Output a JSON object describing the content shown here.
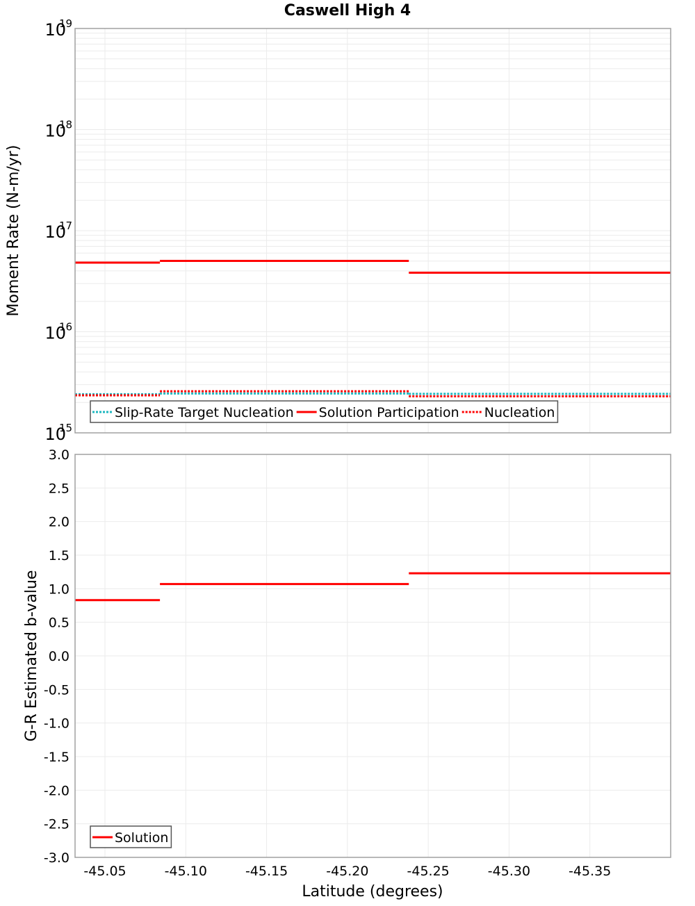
{
  "chart_data": [
    {
      "type": "line",
      "title": "Caswell High 4",
      "xlabel": "Latitude (degrees)",
      "ylabel": "Moment Rate (N-m/yr)",
      "yscale": "log",
      "ylim": [
        1000000000000000.0,
        1e+19
      ],
      "xlim": [
        -45.0315,
        -45.4
      ],
      "x_inverted": true,
      "y_tick_labels": [
        {
          "base": "10",
          "exp": "19",
          "value": 1e+19
        },
        {
          "base": "10",
          "exp": "18",
          "value": 1e+18
        },
        {
          "base": "10",
          "exp": "17",
          "value": 1e+17
        },
        {
          "base": "10",
          "exp": "16",
          "value": 1e+16
        },
        {
          "base": "10",
          "exp": "15",
          "value": 1000000000000000.0
        }
      ],
      "grid": true,
      "legend_position": "lower-left",
      "series": [
        {
          "name": "Slip-Rate Target Nucleation",
          "color": "#1fb8c0",
          "style": "dotted",
          "segments": [
            {
              "x0": -45.0315,
              "x1": -45.084,
              "value": 2410000000000000.0
            },
            {
              "x0": -45.084,
              "x1": -45.238,
              "value": 2450000000000000.0
            },
            {
              "x0": -45.238,
              "x1": -45.4,
              "value": 2430000000000000.0
            }
          ]
        },
        {
          "name": "Solution Participation",
          "color": "#ff0000",
          "style": "solid",
          "segments": [
            {
              "x0": -45.0315,
              "x1": -45.084,
              "value": 4.83e+16
            },
            {
              "x0": -45.084,
              "x1": -45.238,
              "value": 5.02e+16
            },
            {
              "x0": -45.238,
              "x1": -45.4,
              "value": 3.84e+16
            }
          ]
        },
        {
          "name": "Nucleation",
          "color": "#ff0000",
          "style": "dotted",
          "segments": [
            {
              "x0": -45.0315,
              "x1": -45.084,
              "value": 2350000000000000.0
            },
            {
              "x0": -45.084,
              "x1": -45.238,
              "value": 2580000000000000.0
            },
            {
              "x0": -45.238,
              "x1": -45.4,
              "value": 2300000000000000.0
            }
          ]
        }
      ]
    },
    {
      "type": "line",
      "title": "",
      "xlabel": "Latitude (degrees)",
      "ylabel": "G-R Estimated b-value",
      "ylim": [
        -3.0,
        3.0
      ],
      "xlim": [
        -45.0315,
        -45.4
      ],
      "x_inverted": true,
      "y_ticks": [
        "3.0",
        "2.5",
        "2.0",
        "1.5",
        "1.0",
        "0.5",
        "0.0",
        "-0.5",
        "-1.0",
        "-1.5",
        "-2.0",
        "-2.5",
        "-3.0"
      ],
      "x_ticks": [
        "-45.05",
        "-45.10",
        "-45.15",
        "-45.20",
        "-45.25",
        "-45.30",
        "-45.35"
      ],
      "x_tick_values": [
        -45.05,
        -45.1,
        -45.15,
        -45.2,
        -45.25,
        -45.3,
        -45.35
      ],
      "grid": true,
      "legend_position": "lower-left",
      "series": [
        {
          "name": "Solution",
          "color": "#ff0000",
          "style": "solid",
          "segments": [
            {
              "x0": -45.0315,
              "x1": -45.084,
              "value": 0.83
            },
            {
              "x0": -45.084,
              "x1": -45.238,
              "value": 1.07
            },
            {
              "x0": -45.238,
              "x1": -45.4,
              "value": 1.23
            }
          ]
        }
      ]
    }
  ],
  "labels": {
    "title": "Caswell High 4",
    "top_ylabel": "Moment Rate (N-m/yr)",
    "bottom_ylabel": "G-R Estimated b-value",
    "xlabel": "Latitude (degrees)",
    "top_legend": [
      "Slip-Rate Target Nucleation",
      "Solution Participation",
      "Nucleation"
    ],
    "bottom_legend": [
      "Solution"
    ]
  }
}
